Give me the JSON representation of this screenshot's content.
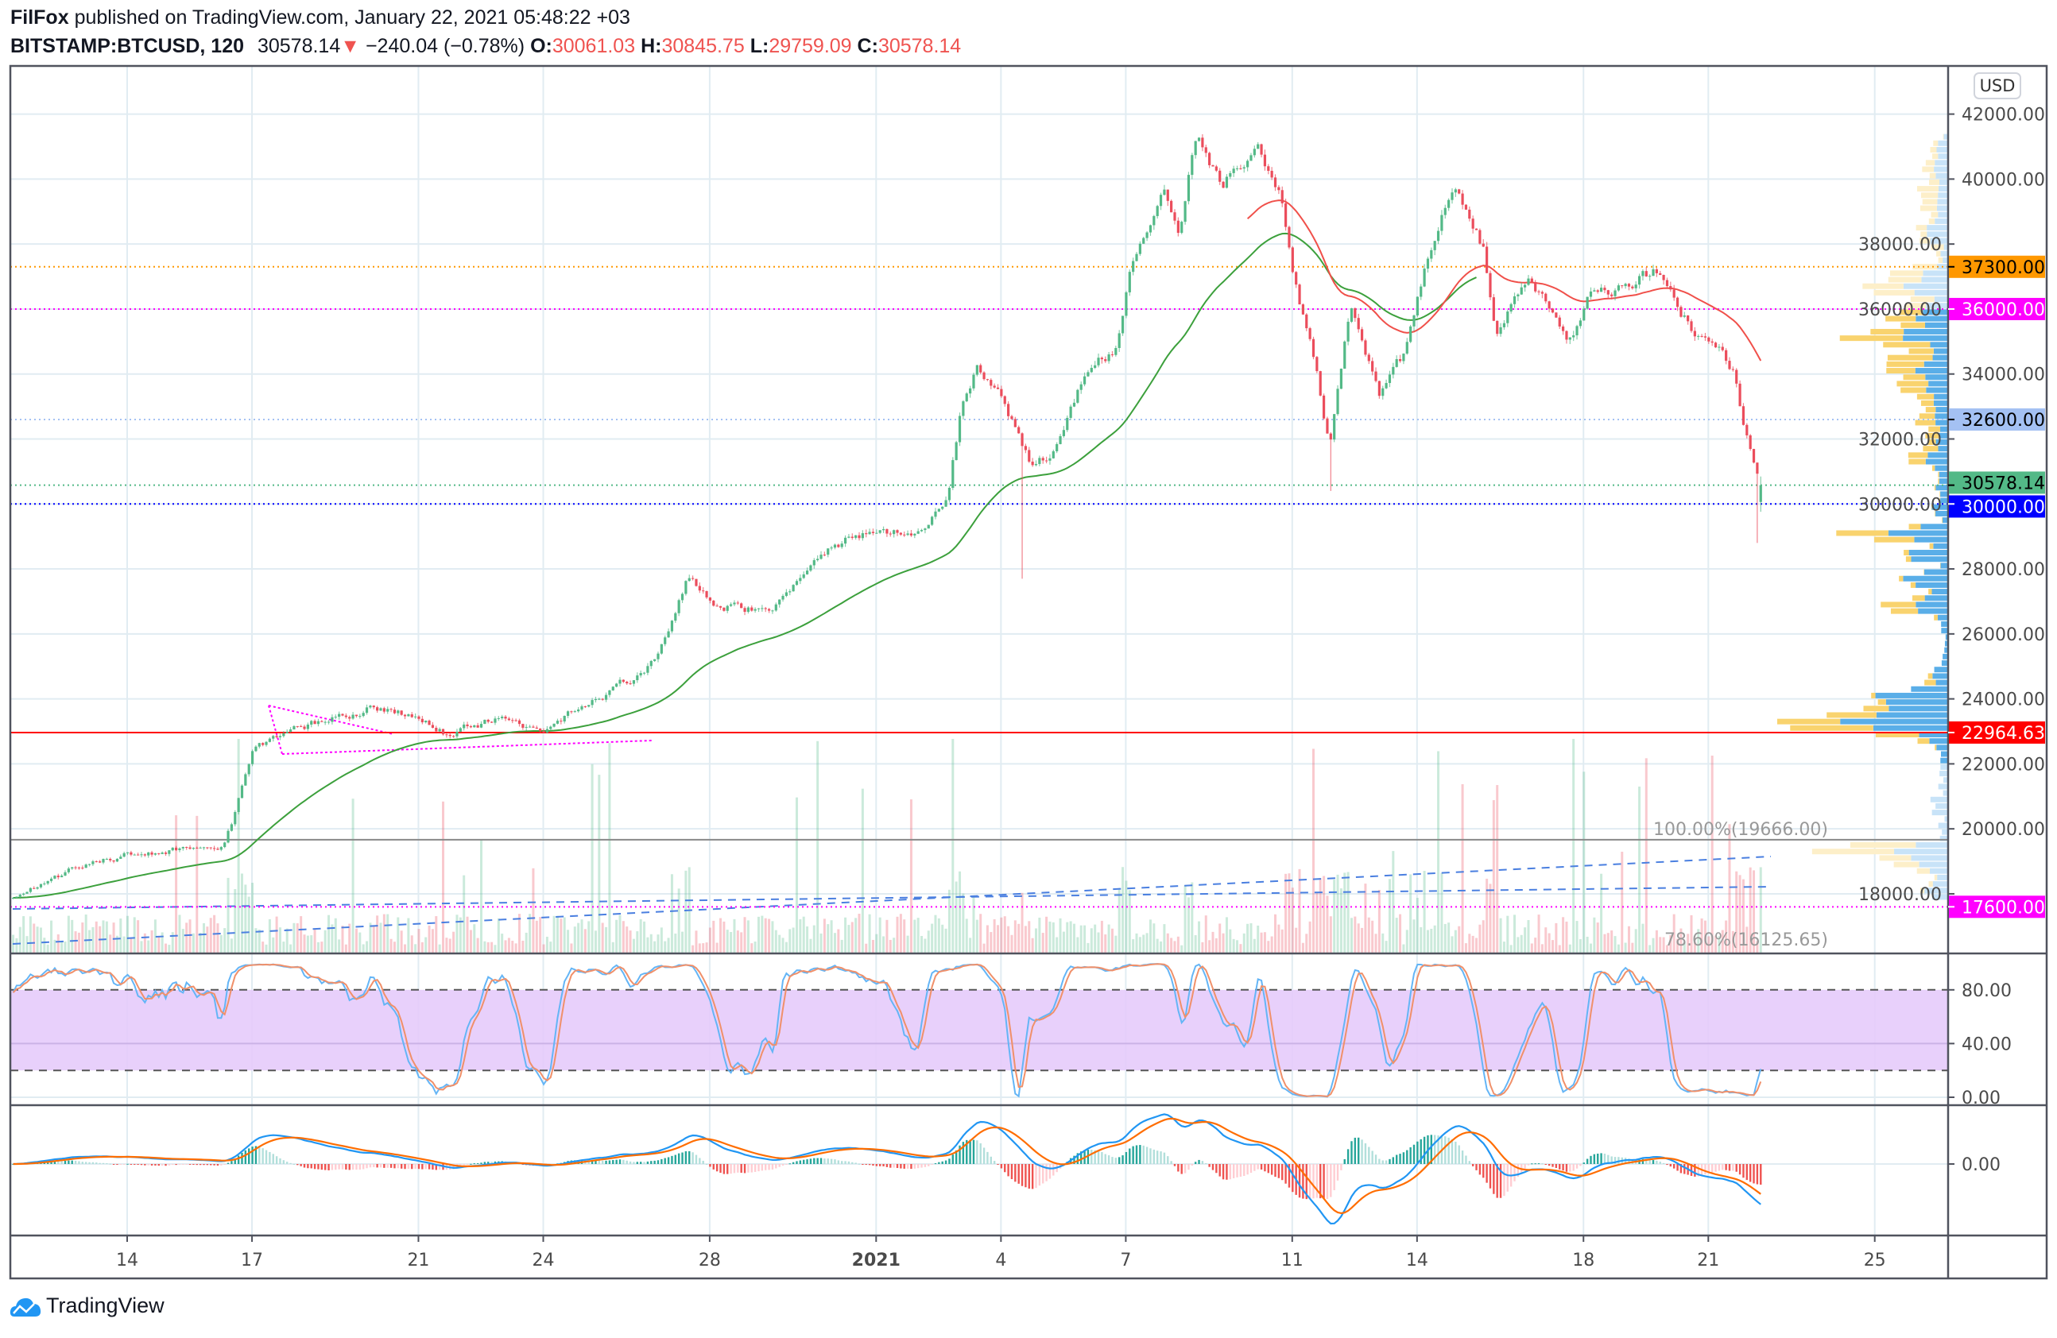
{
  "header": {
    "author": "FilFox",
    "published": "published on TradingView.com, January 22, 2021 05:48:22 +03",
    "symbol": "BITSTAMP:BTCUSD, 120",
    "last": "30578.14",
    "change": "−240.04 (−0.78%)",
    "o_label": "O:",
    "o": "30061.03",
    "h_label": "H:",
    "h": "30845.75",
    "l_label": "L:",
    "l": "29759.09",
    "c_label": "C:",
    "c": "30578.14"
  },
  "footer": {
    "brand": "TradingView"
  },
  "chart_data": {
    "type": "candlestick",
    "interval": "120",
    "currency": "USD",
    "colors": {
      "up": "#53b987",
      "down": "#eb4d5c",
      "ma_green": "#3ca03c",
      "ma_red": "#f0504a",
      "macd": "#2196f3",
      "signal": "#ff6d00",
      "stoch_band": "#e6cbfb"
    },
    "x_ticks": [
      {
        "label": "14",
        "d": 0
      },
      {
        "label": "17",
        "d": 3
      },
      {
        "label": "21",
        "d": 7
      },
      {
        "label": "24",
        "d": 10
      },
      {
        "label": "28",
        "d": 14
      },
      {
        "label": "2021",
        "d": 18,
        "bold": true
      },
      {
        "label": "4",
        "d": 21
      },
      {
        "label": "7",
        "d": 24
      },
      {
        "label": "11",
        "d": 28
      },
      {
        "label": "14",
        "d": 31
      },
      {
        "label": "18",
        "d": 35
      },
      {
        "label": "21",
        "d": 38
      },
      {
        "label": "25",
        "d": 42
      }
    ],
    "x_unit": "days since Dec 14, 2020",
    "y_ticks": [
      "42000.00",
      "40000.00",
      "38000.00",
      "36000.00",
      "34000.00",
      "32000.00",
      "30000.00",
      "28000.00",
      "26000.00",
      "24000.00",
      "22000.00",
      "20000.00",
      "18000.00"
    ],
    "ylim": [
      16000,
      43500
    ],
    "price_path": [
      [
        -2.74,
        17860
      ],
      [
        -1.17,
        18870
      ],
      [
        0,
        19190
      ],
      [
        2.3,
        19470
      ],
      [
        2.6,
        20480
      ],
      [
        3.0,
        22300
      ],
      [
        3.7,
        22900
      ],
      [
        5.8,
        23710
      ],
      [
        7.0,
        23500
      ],
      [
        7.7,
        22900
      ],
      [
        8.9,
        23390
      ],
      [
        10.0,
        23100
      ],
      [
        11.5,
        24120
      ],
      [
        12.7,
        25120
      ],
      [
        13.5,
        27750
      ],
      [
        14.0,
        26940
      ],
      [
        15.2,
        26740
      ],
      [
        15.9,
        27140
      ],
      [
        16.5,
        28360
      ],
      [
        17.4,
        28960
      ],
      [
        19.0,
        29160
      ],
      [
        19.7,
        29970
      ],
      [
        20.0,
        32590
      ],
      [
        20.4,
        34210
      ],
      [
        21.1,
        33000
      ],
      [
        21.7,
        31180
      ],
      [
        22.3,
        31580
      ],
      [
        23.1,
        34210
      ],
      [
        23.8,
        34810
      ],
      [
        24.1,
        37030
      ],
      [
        24.9,
        39660
      ],
      [
        25.3,
        38450
      ],
      [
        25.7,
        41480
      ],
      [
        26.3,
        39860
      ],
      [
        27.2,
        41070
      ],
      [
        27.7,
        39460
      ],
      [
        28.1,
        36630
      ],
      [
        28.5,
        34610
      ],
      [
        28.9,
        31790
      ],
      [
        29.4,
        36230
      ],
      [
        30.1,
        33400
      ],
      [
        30.7,
        34610
      ],
      [
        31.2,
        37440
      ],
      [
        31.9,
        39860
      ],
      [
        32.6,
        37840
      ],
      [
        32.9,
        35420
      ],
      [
        33.7,
        37240
      ],
      [
        34.6,
        34810
      ],
      [
        35.1,
        36230
      ],
      [
        36.1,
        36830
      ],
      [
        36.8,
        37240
      ],
      [
        37.6,
        35420
      ],
      [
        38.1,
        35010
      ],
      [
        38.6,
        34210
      ],
      [
        38.9,
        32190
      ],
      [
        39.3,
        30578.14
      ]
    ],
    "notable_wicks": [
      {
        "d": 21.55,
        "low": 27700
      },
      {
        "d": 28.9,
        "low": 30400
      },
      {
        "d": 39.2,
        "low": 28800
      }
    ],
    "last_bar": {
      "open": 30061.03,
      "high": 30845.75,
      "low": 29759.09,
      "close": 30578.14
    },
    "levels": [
      {
        "price": 37300,
        "label": "37300.00",
        "color": "#ff9800",
        "text": "#000000",
        "style": "dotted"
      },
      {
        "price": 36000,
        "label": "36000.00",
        "color": "#ff00ff",
        "text": "#ffffff",
        "style": "dotted"
      },
      {
        "price": 32600,
        "label": "32600.00",
        "color": "#a4c1f3",
        "text": "#000000",
        "style": "dotted"
      },
      {
        "price": 30578.14,
        "label": "30578.14",
        "color": "#53b987",
        "text": "#000000",
        "style": "dotted"
      },
      {
        "price": 30000,
        "label": "30000.00",
        "color": "#0000ff",
        "text": "#ffffff",
        "style": "dotted"
      },
      {
        "price": 22964.63,
        "label": "22964.63",
        "color": "#ff0000",
        "text": "#ffffff",
        "style": "solid"
      },
      {
        "price": 17600,
        "label": "17600.00",
        "color": "#ff00ff",
        "text": "#ffffff",
        "style": "dotted"
      }
    ],
    "fib": [
      {
        "label": "100.00%(19666.00)",
        "price": 19666.0
      },
      {
        "label": "78.60%(16125.65)",
        "price": 16125.65
      }
    ],
    "stoch": {
      "ticks": [
        "80.00",
        "40.00",
        "0.00"
      ],
      "upper": 80,
      "lower": 20
    },
    "macd": {
      "ticks": [
        "0.00"
      ]
    }
  }
}
